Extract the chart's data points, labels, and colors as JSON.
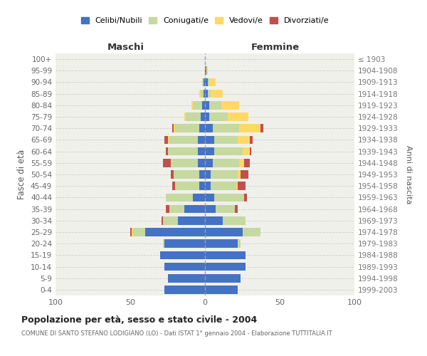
{
  "age_groups": [
    "100+",
    "95-99",
    "90-94",
    "85-89",
    "80-84",
    "75-79",
    "70-74",
    "65-69",
    "60-64",
    "55-59",
    "50-54",
    "45-49",
    "40-44",
    "35-39",
    "30-34",
    "25-29",
    "20-24",
    "15-19",
    "10-14",
    "5-9",
    "0-4"
  ],
  "birth_years": [
    "≤ 1903",
    "1904-1908",
    "1909-1913",
    "1914-1918",
    "1919-1923",
    "1924-1928",
    "1929-1933",
    "1934-1938",
    "1939-1943",
    "1944-1948",
    "1949-1953",
    "1954-1958",
    "1959-1963",
    "1964-1968",
    "1969-1973",
    "1974-1978",
    "1979-1983",
    "1984-1988",
    "1989-1993",
    "1994-1998",
    "1999-2003"
  ],
  "males_celibi": [
    0,
    0,
    1,
    1,
    2,
    3,
    4,
    5,
    5,
    5,
    4,
    4,
    8,
    14,
    18,
    40,
    27,
    30,
    27,
    25,
    27
  ],
  "males_coniugati": [
    0,
    0,
    1,
    2,
    6,
    10,
    16,
    19,
    20,
    18,
    17,
    16,
    18,
    10,
    10,
    8,
    1,
    0,
    0,
    0,
    0
  ],
  "males_vedovi": [
    0,
    0,
    0,
    1,
    1,
    1,
    1,
    1,
    0,
    0,
    0,
    0,
    0,
    0,
    0,
    1,
    0,
    0,
    0,
    0,
    0
  ],
  "males_divorziati": [
    0,
    0,
    0,
    0,
    0,
    0,
    1,
    2,
    1,
    5,
    2,
    2,
    0,
    2,
    1,
    1,
    0,
    0,
    0,
    0,
    0
  ],
  "females_nubili": [
    0,
    1,
    2,
    2,
    3,
    3,
    5,
    6,
    6,
    5,
    4,
    4,
    6,
    7,
    12,
    25,
    22,
    27,
    27,
    24,
    22
  ],
  "females_coniugate": [
    0,
    0,
    1,
    2,
    8,
    12,
    18,
    16,
    19,
    18,
    18,
    17,
    20,
    13,
    15,
    12,
    2,
    0,
    0,
    0,
    0
  ],
  "females_vedove": [
    0,
    1,
    4,
    8,
    12,
    14,
    14,
    8,
    5,
    3,
    2,
    1,
    0,
    0,
    0,
    0,
    0,
    0,
    0,
    0,
    0
  ],
  "females_divorziate": [
    0,
    0,
    0,
    0,
    0,
    0,
    2,
    2,
    1,
    4,
    5,
    5,
    2,
    2,
    0,
    0,
    0,
    0,
    0,
    0,
    0
  ],
  "color_celibi": "#4472C4",
  "color_coniugati": "#C5D9A0",
  "color_vedovi": "#FFD966",
  "color_divorziati": "#C0504D",
  "xlim": 100,
  "title": "Popolazione per età, sesso e stato civile - 2004",
  "subtitle": "COMUNE DI SANTO STEFANO LODIGIANO (LO) - Dati ISTAT 1° gennaio 2004 - Elaborazione TUTTITALIA.IT",
  "label_maschi": "Maschi",
  "label_femmine": "Femmine",
  "ylabel_left": "Fasce di età",
  "ylabel_right": "Anni di nascita",
  "legend_labels": [
    "Celibi/Nubili",
    "Coniugati/e",
    "Vedovi/e",
    "Divorziati/e"
  ],
  "bg_color": "#ffffff",
  "plot_bg": "#f0f0eb",
  "grid_color": "#cccccc"
}
